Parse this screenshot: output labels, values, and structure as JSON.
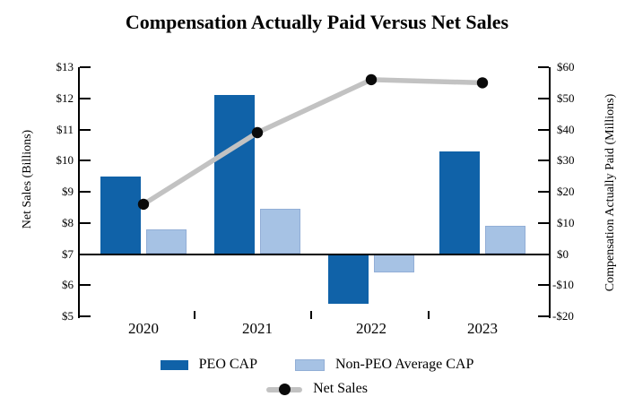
{
  "title": "Compensation Actually Paid Versus Net Sales",
  "chart_data": {
    "type": "bar",
    "subtype": "combo-bar-line-dual-axis",
    "categories": [
      "2020",
      "2021",
      "2022",
      "2023"
    ],
    "series": [
      {
        "name": "PEO CAP",
        "type": "bar",
        "axis": "right",
        "color": "#1062A8",
        "values": [
          25,
          51,
          -16,
          33
        ]
      },
      {
        "name": "Non-PEO Average CAP",
        "type": "bar",
        "axis": "right",
        "color": "#A6C2E4",
        "border_color": "#92AED6",
        "values": [
          8,
          14.5,
          -6,
          9
        ]
      },
      {
        "name": "Net Sales",
        "type": "line",
        "axis": "left",
        "color": "#C2C2C2",
        "marker_color": "#0A0A0A",
        "values": [
          8.6,
          10.9,
          12.6,
          12.5
        ]
      }
    ],
    "left_axis": {
      "label": "Net Sales (Billions)",
      "min": 5,
      "max": 13,
      "step": 1,
      "tick_labels": [
        "$5",
        "$6",
        "$7",
        "$8",
        "$9",
        "$10",
        "$11",
        "$12",
        "$13"
      ]
    },
    "right_axis": {
      "label": "Compensation Actually Paid (Millions)",
      "min": -20,
      "max": 60,
      "step": 10,
      "tick_labels": [
        "-$20",
        "-$10",
        "$0",
        "$10",
        "$20",
        "$30",
        "$40",
        "$50",
        "$60"
      ]
    },
    "zero_line_right_value": 0,
    "grid": "off",
    "legend_position": "bottom"
  }
}
